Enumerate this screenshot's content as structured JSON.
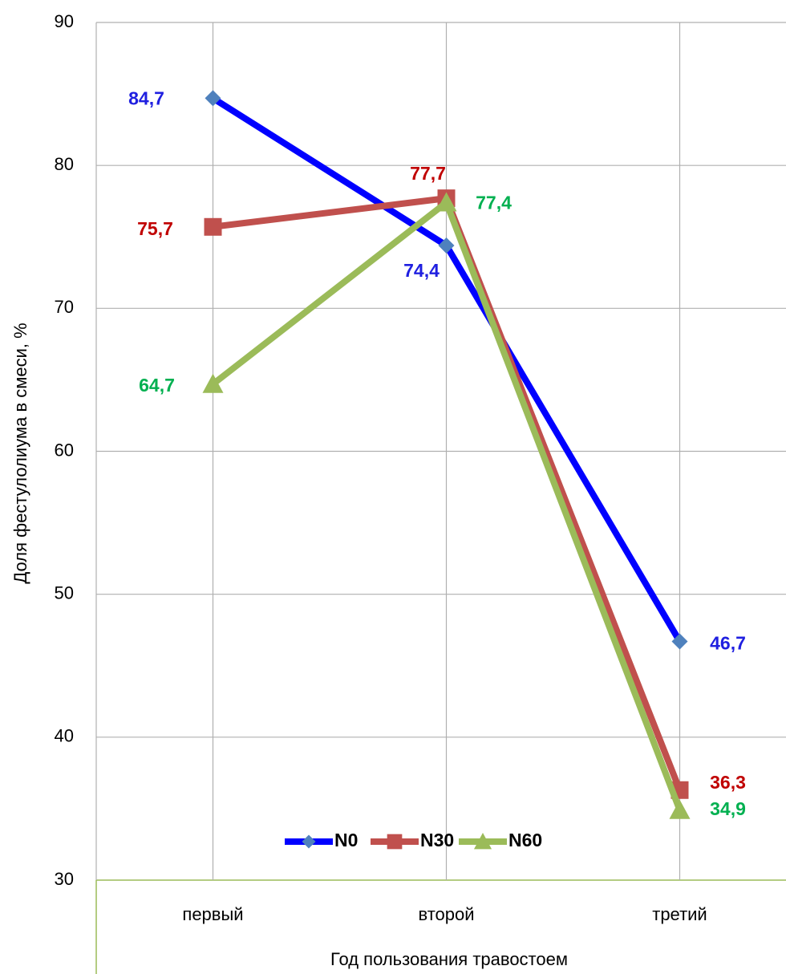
{
  "chart_data": {
    "type": "line",
    "x_label": "Год пользования травостоем",
    "y_label": "Доля фестулолиума в смеси, %",
    "categories": [
      "первый",
      "второй",
      "третий"
    ],
    "series": [
      {
        "name": "N0",
        "color": "#0000ff",
        "marker_color": "#4f81bd",
        "marker": "diamond",
        "label_color": "#1f1fe0",
        "values": [
          84.7,
          74.4,
          46.7
        ],
        "value_labels": [
          "84,7",
          "74,4",
          "46,7"
        ]
      },
      {
        "name": "N30",
        "color": "#c0504d",
        "marker_color": "#c0504d",
        "marker": "square",
        "label_color": "#c00000",
        "values": [
          75.7,
          77.7,
          36.3
        ],
        "value_labels": [
          "75,7",
          "77,7",
          "36,3"
        ]
      },
      {
        "name": "N60",
        "color": "#9bbb59",
        "marker_color": "#9bbb59",
        "marker": "triangle",
        "label_color": "#00b050",
        "values": [
          64.7,
          77.4,
          34.9
        ],
        "value_labels": [
          "64,7",
          "77,4",
          "34,9"
        ]
      }
    ],
    "ylim": [
      30,
      90
    ],
    "yticks": [
      30,
      40,
      50,
      60,
      70,
      80,
      90
    ],
    "grid": true,
    "legend": "bottom"
  }
}
